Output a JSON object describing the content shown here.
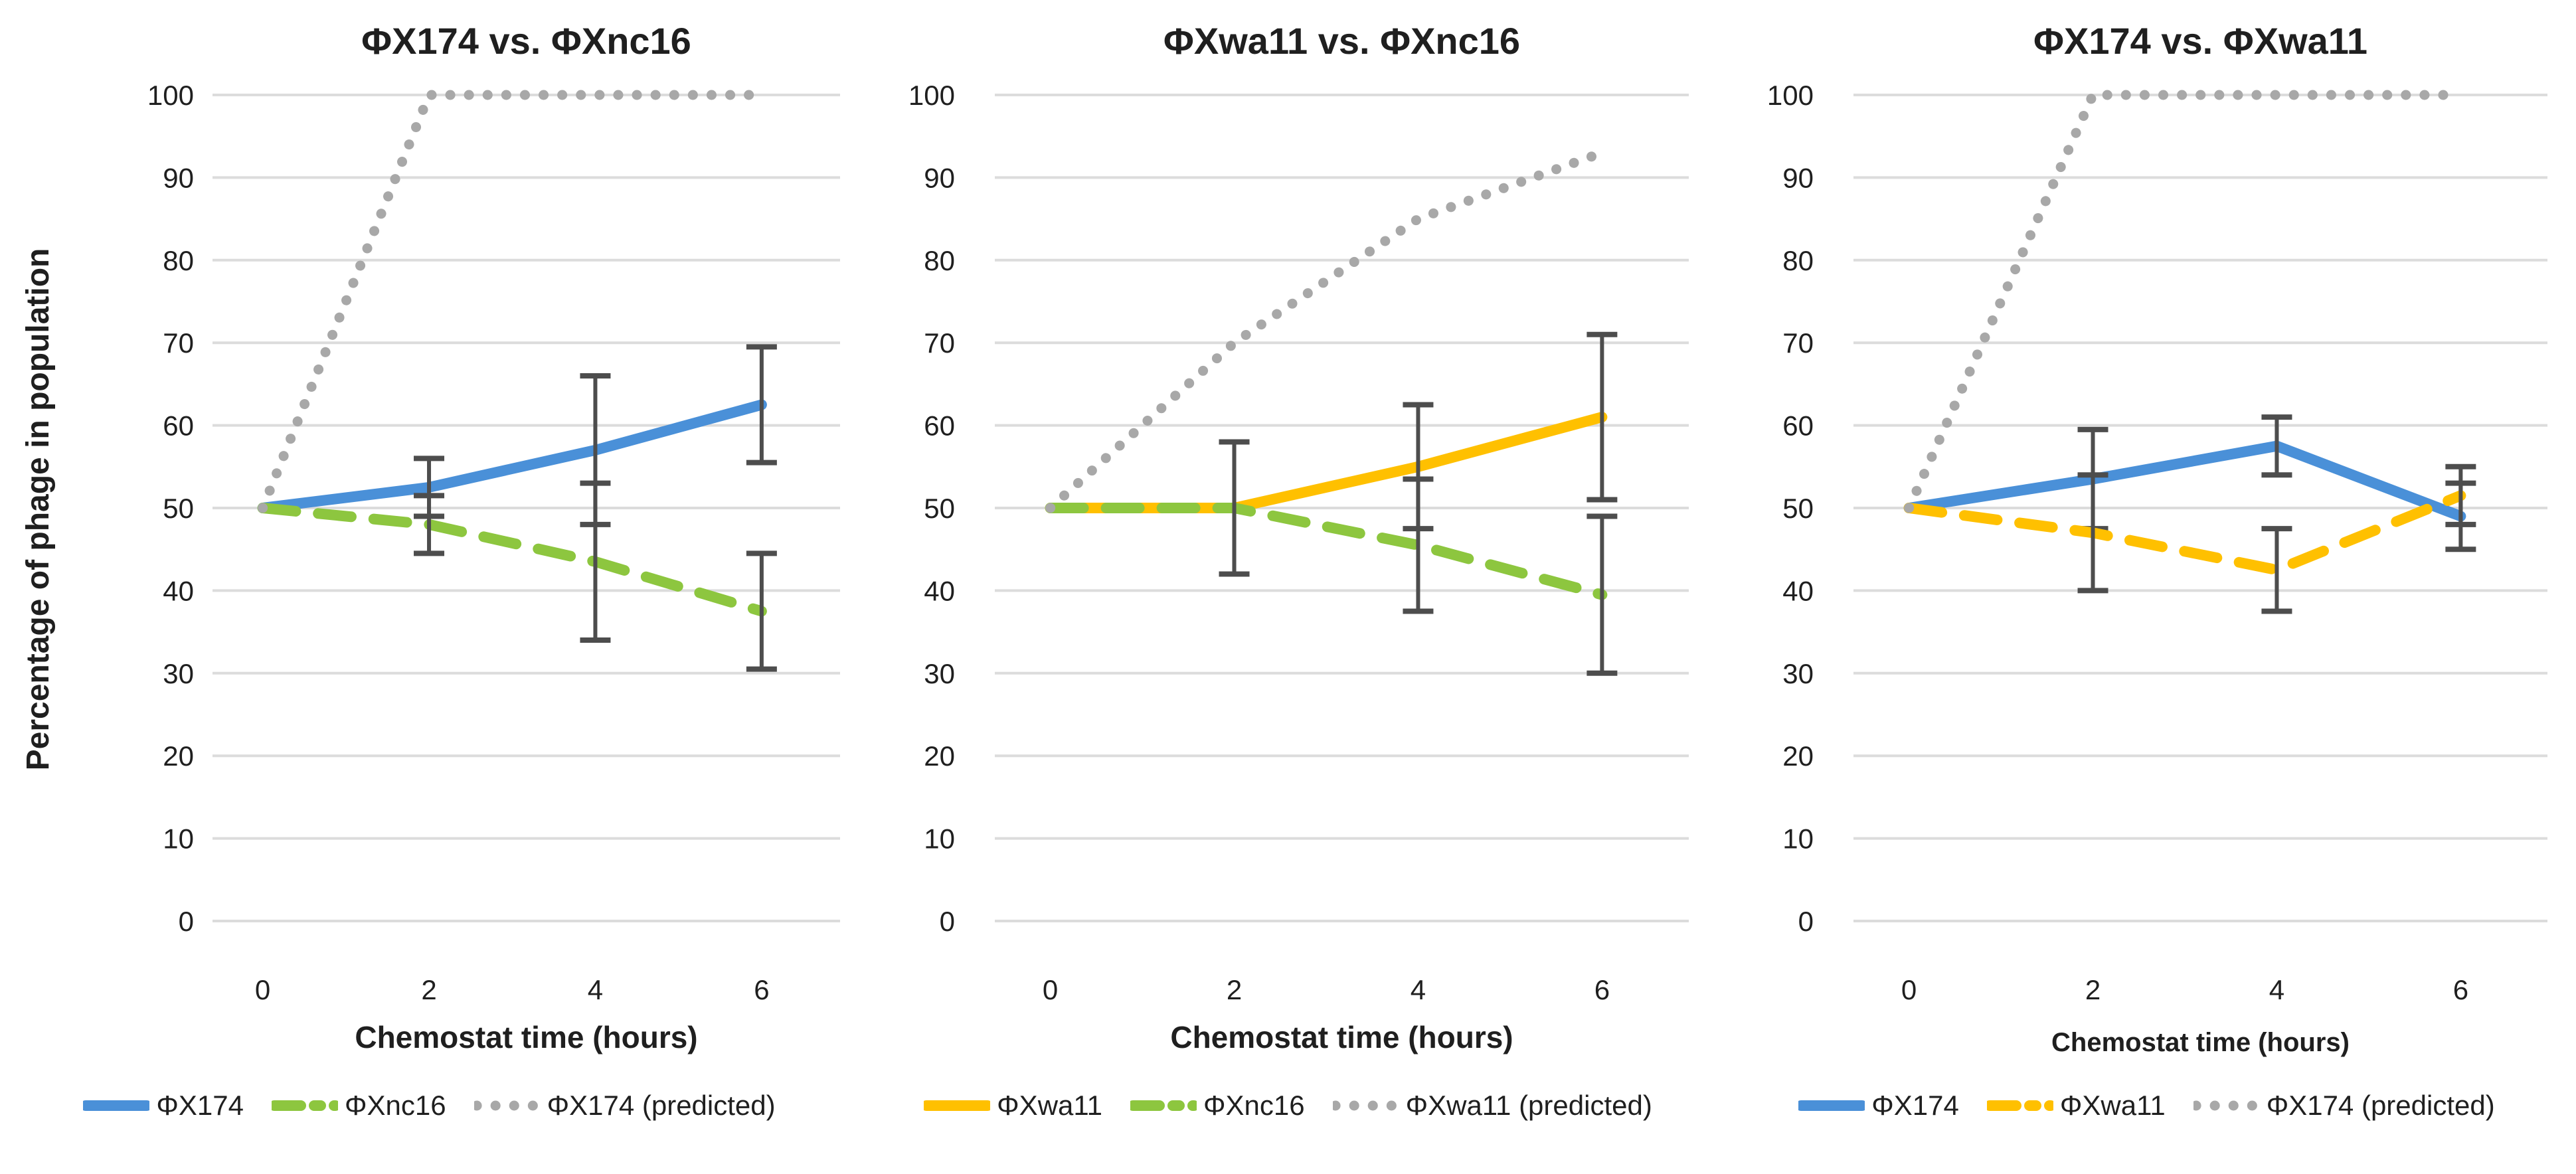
{
  "colors": {
    "blue": "#4A90D8",
    "gold": "#FFC000",
    "green": "#8DC63F",
    "gray_predicted": "#A8A8A8",
    "error_bar": "#4D4D4D",
    "gridline": "#DCDCDC",
    "text": "#1F1F1F"
  },
  "chart_data": [
    {
      "type": "line",
      "title": "ΦX174 vs. ΦXnc16",
      "xlabel": "Chemostat time (hours)",
      "ylabel": "Percentage of phage in population",
      "categories": [
        "0",
        "2",
        "4",
        "6"
      ],
      "x_values_hours": [
        0,
        2,
        4,
        6
      ],
      "ylim": [
        0,
        100
      ],
      "yticks": [
        0,
        10,
        20,
        30,
        40,
        50,
        60,
        70,
        80,
        90,
        100
      ],
      "grid": "horizontal",
      "legend_position": "bottom",
      "series": [
        {
          "name": "ΦX174",
          "style": "solid",
          "color": "#4A90D8",
          "values": [
            50,
            52.5,
            57,
            62.5
          ],
          "error_bars": [
            null,
            3.5,
            9,
            7
          ]
        },
        {
          "name": "ΦXnc16",
          "style": "dashed",
          "color": "#8DC63F",
          "values": [
            50,
            48,
            43.5,
            37.5
          ],
          "error_bars": [
            null,
            3.5,
            9.5,
            7
          ]
        },
        {
          "name": "ΦX174 (predicted)",
          "style": "dotted",
          "color": "#A8A8A8",
          "values": [
            50,
            100,
            100,
            100
          ],
          "error_bars": null
        }
      ]
    },
    {
      "type": "line",
      "title": "ΦXwa11 vs. ΦXnc16",
      "xlabel": "Chemostat time (hours)",
      "ylabel": "",
      "categories": [
        "0",
        "2",
        "4",
        "6"
      ],
      "x_values_hours": [
        0,
        2,
        4,
        6
      ],
      "ylim": [
        0,
        100
      ],
      "yticks": [
        0,
        10,
        20,
        30,
        40,
        50,
        60,
        70,
        80,
        90,
        100
      ],
      "grid": "horizontal",
      "legend_position": "bottom",
      "series": [
        {
          "name": "ΦXwa11",
          "style": "solid",
          "color": "#FFC000",
          "values": [
            50,
            50,
            55,
            61
          ],
          "error_bars": [
            null,
            8,
            7.5,
            10
          ]
        },
        {
          "name": "ΦXnc16",
          "style": "dashed",
          "color": "#8DC63F",
          "values": [
            50,
            50,
            45.5,
            39.5
          ],
          "error_bars": [
            null,
            8,
            8,
            9.5
          ]
        },
        {
          "name": "ΦXwa11 (predicted)",
          "style": "dotted",
          "color": "#A8A8A8",
          "values": [
            50,
            70,
            85,
            93
          ],
          "error_bars": null
        }
      ]
    },
    {
      "type": "line",
      "title": "ΦX174 vs. ΦXwa11",
      "xlabel": "Chemostat time (hours)",
      "ylabel": "",
      "categories": [
        "0",
        "2",
        "4",
        "6"
      ],
      "x_values_hours": [
        0,
        2,
        4,
        6
      ],
      "ylim": [
        0,
        100
      ],
      "yticks": [
        0,
        10,
        20,
        30,
        40,
        50,
        60,
        70,
        80,
        90,
        100
      ],
      "grid": "horizontal",
      "legend_position": "bottom",
      "series": [
        {
          "name": "ΦX174",
          "style": "solid",
          "color": "#4A90D8",
          "values": [
            50,
            53.5,
            57.5,
            49
          ],
          "error_bars": [
            null,
            6,
            3.5,
            4
          ]
        },
        {
          "name": "ΦXwa11",
          "style": "dashed",
          "color": "#FFC000",
          "values": [
            50,
            47,
            42.5,
            51.5
          ],
          "error_bars": [
            null,
            7,
            5,
            3.5
          ]
        },
        {
          "name": "ΦX174 (predicted)",
          "style": "dotted",
          "color": "#A8A8A8",
          "values": [
            50,
            100,
            100,
            100
          ],
          "error_bars": null
        }
      ]
    }
  ]
}
